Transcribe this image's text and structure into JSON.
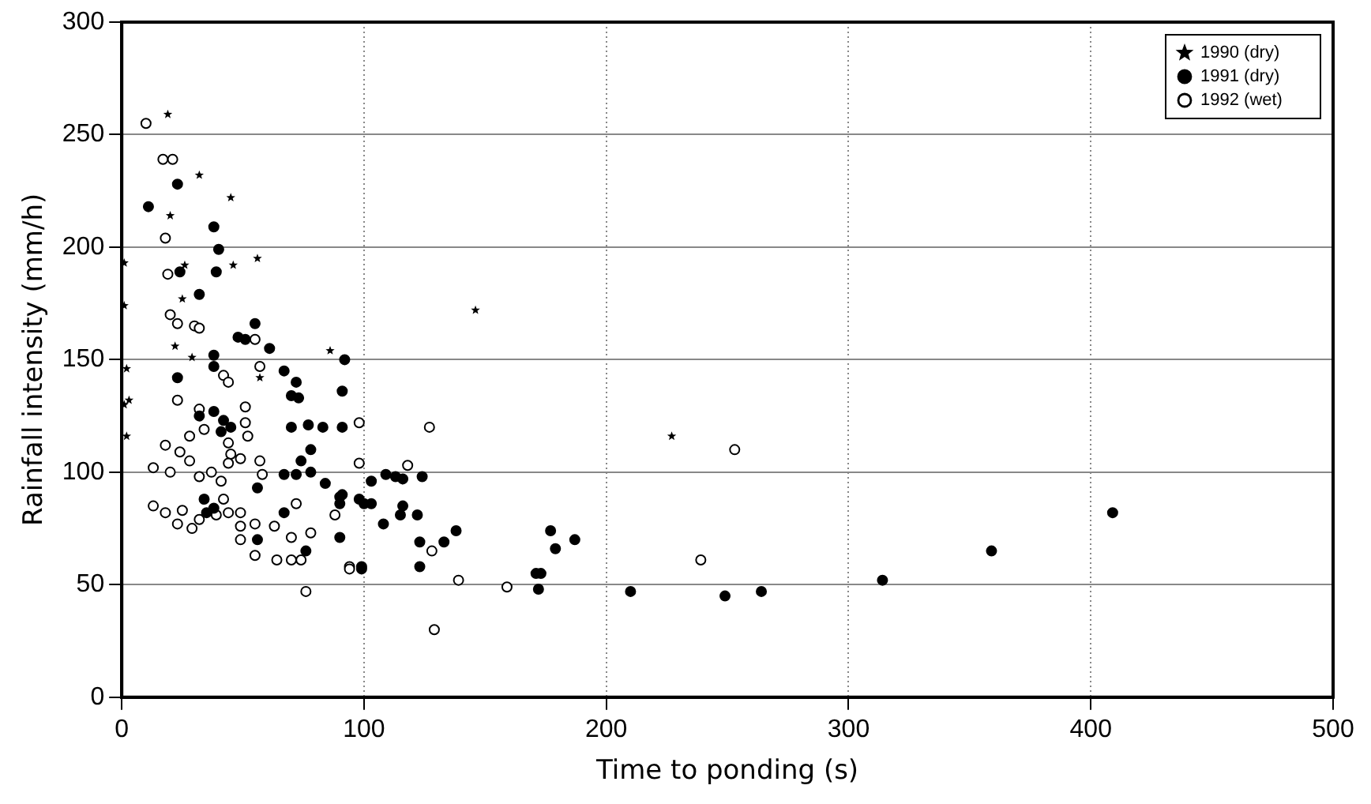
{
  "chart_data": {
    "type": "scatter",
    "xlabel": "Time to ponding (s)",
    "ylabel": "Rainfall intensity (mm/h)",
    "xlim": [
      0,
      500
    ],
    "xticks": [
      0,
      100,
      200,
      300,
      400,
      500
    ],
    "ylim": [
      0,
      300
    ],
    "yticks": [
      0,
      50,
      100,
      150,
      200,
      250,
      300
    ],
    "grid": true,
    "legend": "top right",
    "series": [
      {
        "name": "1990 (dry)",
        "color": "#000000",
        "marker": "star",
        "x": [
          19,
          32,
          45,
          20,
          56,
          46,
          26,
          1,
          1,
          25,
          22,
          29,
          86,
          2,
          3,
          57,
          1,
          2,
          146,
          227
        ],
        "values": [
          259,
          232,
          222,
          214,
          195,
          192,
          192,
          193,
          174,
          177,
          156,
          151,
          154,
          146,
          132,
          142,
          130,
          116,
          172,
          116
        ]
      },
      {
        "name": "1991 (dry)",
        "color": "#000000",
        "marker": "circle",
        "x": [
          23,
          11,
          38,
          40,
          39,
          24,
          32,
          55,
          48,
          51,
          61,
          92,
          23,
          38,
          38,
          67,
          72,
          73,
          70,
          91,
          32,
          38,
          42,
          41,
          45,
          70,
          77,
          83,
          91,
          78,
          74,
          72,
          78,
          84,
          67,
          56,
          90,
          98,
          34,
          38,
          35,
          56,
          67,
          76,
          90,
          99,
          103,
          109,
          113,
          116,
          124,
          91,
          90,
          100,
          103,
          116,
          115,
          122,
          108,
          123,
          133,
          138,
          123,
          99,
          177,
          179,
          187,
          171,
          173,
          172,
          210,
          249,
          264,
          314,
          359,
          409
        ],
        "values": [
          228,
          218,
          209,
          199,
          189,
          189,
          179,
          166,
          160,
          159,
          155,
          150,
          142,
          152,
          147,
          145,
          140,
          133,
          134,
          136,
          125,
          127,
          123,
          118,
          120,
          120,
          121,
          120,
          120,
          110,
          105,
          99,
          100,
          95,
          99,
          93,
          89,
          88,
          88,
          84,
          82,
          70,
          82,
          65,
          71,
          58,
          96,
          99,
          98,
          97,
          98,
          90,
          86,
          86,
          86,
          85,
          81,
          81,
          77,
          69,
          69,
          74,
          58,
          57,
          74,
          66,
          70,
          55,
          55,
          48,
          47,
          45,
          47,
          52,
          65,
          82
        ]
      },
      {
        "name": "1992 (wet)",
        "color": "#000000",
        "marker": "circle",
        "x": [
          10,
          17,
          21,
          18,
          19,
          20,
          23,
          30,
          32,
          55,
          42,
          44,
          57,
          23,
          51,
          32,
          34,
          28,
          51,
          52,
          44,
          45,
          98,
          18,
          24,
          28,
          13,
          20,
          32,
          37,
          41,
          44,
          49,
          57,
          58,
          13,
          18,
          25,
          23,
          29,
          32,
          42,
          44,
          39,
          49,
          49,
          49,
          55,
          55,
          63,
          70,
          72,
          78,
          64,
          70,
          74,
          76,
          88,
          94,
          127,
          98,
          118,
          128,
          94,
          139,
          159,
          129,
          253,
          239
        ],
        "values": [
          255,
          239,
          239,
          204,
          188,
          170,
          166,
          165,
          164,
          159,
          143,
          140,
          147,
          132,
          129,
          128,
          119,
          116,
          122,
          116,
          113,
          108,
          122,
          112,
          109,
          105,
          102,
          100,
          98,
          100,
          96,
          104,
          106,
          105,
          99,
          85,
          82,
          83,
          77,
          75,
          79,
          88,
          82,
          81,
          82,
          76,
          70,
          77,
          63,
          76,
          71,
          86,
          73,
          61,
          61,
          61,
          47,
          81,
          58,
          120,
          104,
          103,
          65,
          57,
          52,
          49,
          30,
          110,
          61
        ]
      }
    ]
  }
}
